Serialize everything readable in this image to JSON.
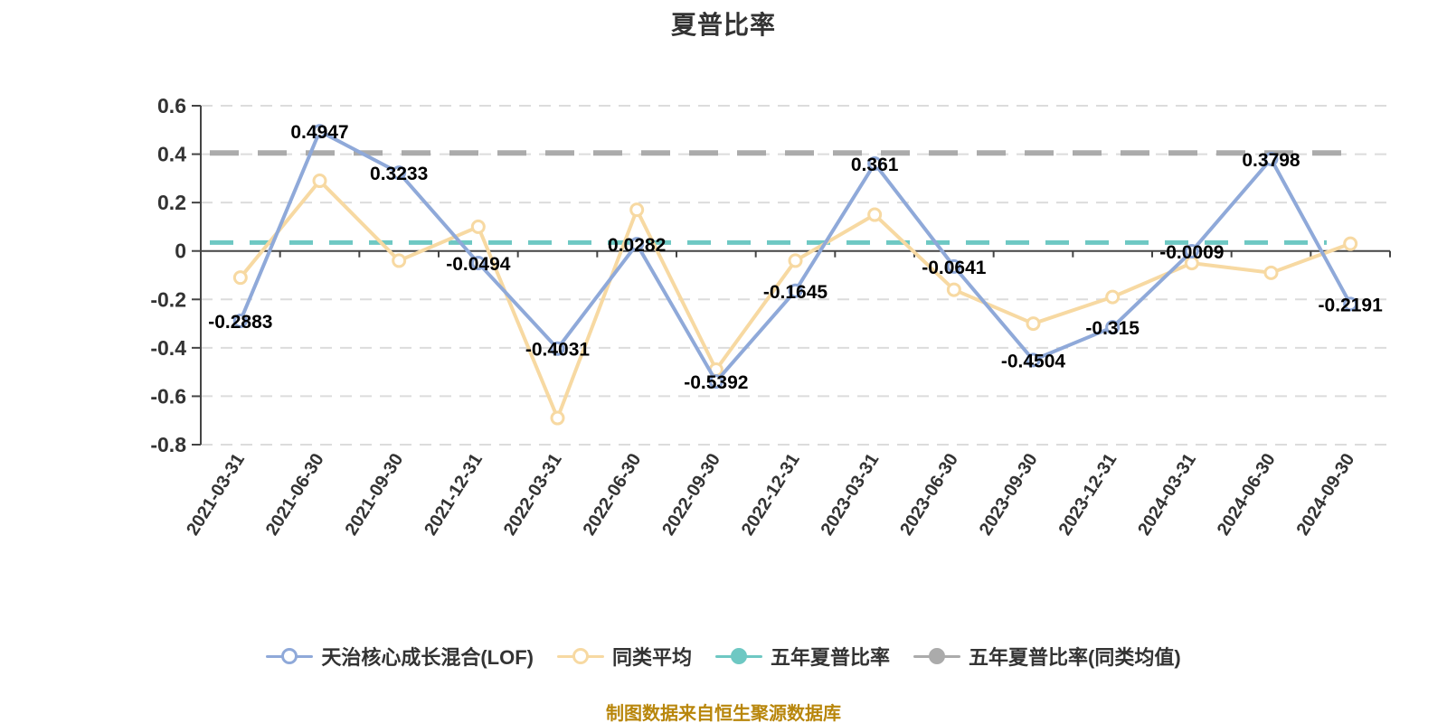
{
  "title": "夏普比率",
  "footer": "制图数据来自恒生聚源数据库",
  "colors": {
    "background": "#FFFFFF",
    "grid": "#DCDCDC",
    "axis": "#444444",
    "tick_label": "#333333",
    "data_label": "#000000",
    "title_text": "#333333",
    "footer_text": "#B8860B",
    "fund_line": "#8FA9D9",
    "peer_line": "#F7D9A2",
    "five_year_line": "#6EC8C3",
    "five_year_peer_line": "#ABABAB"
  },
  "legend": {
    "items": [
      {
        "label": "天治核心成长混合(LOF)",
        "color": "#8FA9D9",
        "fill": "#FFFFFF"
      },
      {
        "label": "同类平均",
        "color": "#F7D9A2",
        "fill": "#FFFFFF"
      },
      {
        "label": "五年夏普比率",
        "color": "#6EC8C3",
        "fill": "#6EC8C3"
      },
      {
        "label": "五年夏普比率(同类均值)",
        "color": "#ABABAB",
        "fill": "#ABABAB"
      }
    ]
  },
  "chart_data": {
    "type": "line",
    "title": "夏普比率",
    "xlabel": "",
    "ylabel": "",
    "ylim": [
      -0.8,
      0.6
    ],
    "yticks": [
      0.6,
      0.4,
      0.2,
      0,
      -0.2,
      -0.4,
      -0.6,
      -0.8
    ],
    "grid": "horizontal-dashed",
    "legend_position": "bottom",
    "categories": [
      "2021-03-31",
      "2021-06-30",
      "2021-09-30",
      "2021-12-31",
      "2022-03-31",
      "2022-06-30",
      "2022-09-30",
      "2022-12-31",
      "2023-03-31",
      "2023-06-30",
      "2023-09-30",
      "2023-12-31",
      "2024-03-31",
      "2024-06-30",
      "2024-09-30"
    ],
    "series": [
      {
        "name": "天治核心成长混合(LOF)",
        "kind": "line",
        "color": "#8FA9D9",
        "marker_fill": "#FFFFFF",
        "values": [
          -0.2883,
          0.4947,
          0.3233,
          -0.0494,
          -0.4031,
          0.0282,
          -0.5392,
          -0.1645,
          0.361,
          -0.0641,
          -0.4504,
          -0.315,
          -0.0009,
          0.3798,
          -0.2191
        ],
        "labels": [
          "-0.2883",
          "0.4947",
          "0.3233",
          "-0.0494",
          "-0.4031",
          "0.0282",
          "-0.5392",
          "-0.1645",
          "0.361",
          "-0.0641",
          "-0.4504",
          "-0.315",
          "-0.0009",
          "0.3798",
          "-0.2191"
        ]
      },
      {
        "name": "同类平均",
        "kind": "line",
        "color": "#F7D9A2",
        "marker_fill": "#FFFFFF",
        "values": [
          -0.11,
          0.29,
          -0.04,
          0.1,
          -0.69,
          0.17,
          -0.49,
          -0.04,
          0.15,
          -0.16,
          -0.3,
          -0.19,
          -0.05,
          -0.09,
          0.03
        ],
        "labels": []
      },
      {
        "name": "五年夏普比率",
        "kind": "hline",
        "color": "#6EC8C3",
        "value": 0.035
      },
      {
        "name": "五年夏普比率(同类均值)",
        "kind": "hline",
        "color": "#ABABAB",
        "value": 0.405
      }
    ]
  }
}
